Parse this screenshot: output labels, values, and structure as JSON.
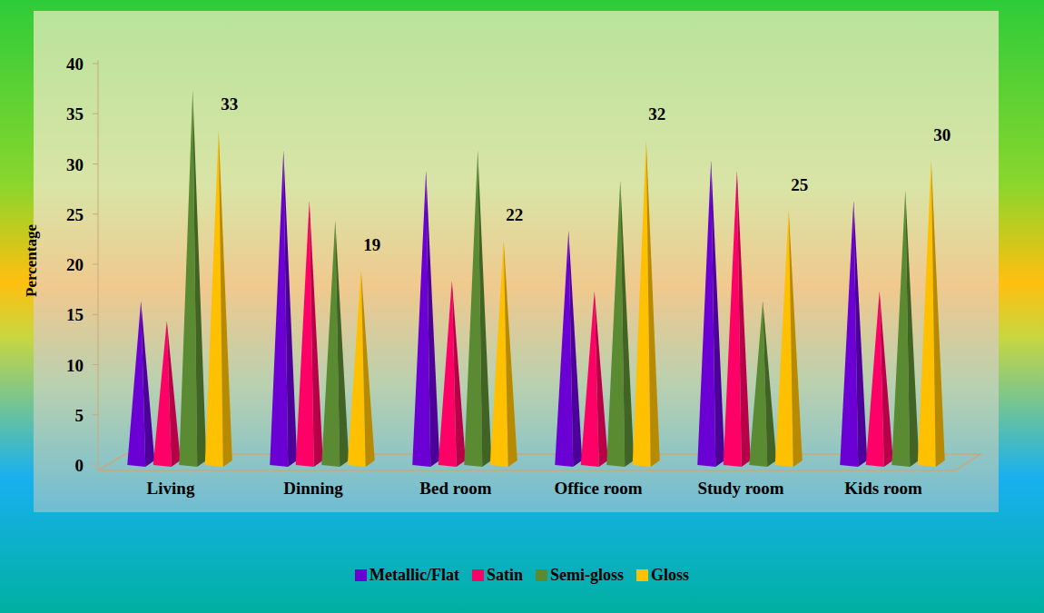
{
  "chart_data": {
    "type": "bar",
    "y_label": "Percentage",
    "categories": [
      "Living",
      "Dinning",
      "Bed room",
      "Office room",
      "Study room",
      "Kids room"
    ],
    "series": [
      {
        "name": "Metallic/Flat",
        "color": "#6a00d4",
        "values": [
          16,
          31,
          29,
          23,
          30,
          26
        ]
      },
      {
        "name": "Satin",
        "color": "#ff0066",
        "values": [
          14,
          26,
          18,
          17,
          29,
          17
        ]
      },
      {
        "name": "Semi-gloss",
        "color": "#5a8a32",
        "values": [
          37,
          24,
          31,
          28,
          16,
          27
        ]
      },
      {
        "name": "Gloss",
        "color": "#ffc000",
        "values": [
          33,
          19,
          22,
          32,
          25,
          30
        ],
        "data_labels": true
      }
    ],
    "ylim": [
      0,
      40
    ],
    "yticks": [
      0,
      5,
      10,
      15,
      20,
      25,
      30,
      35,
      40
    ],
    "grid": false,
    "legend": "bottom"
  }
}
